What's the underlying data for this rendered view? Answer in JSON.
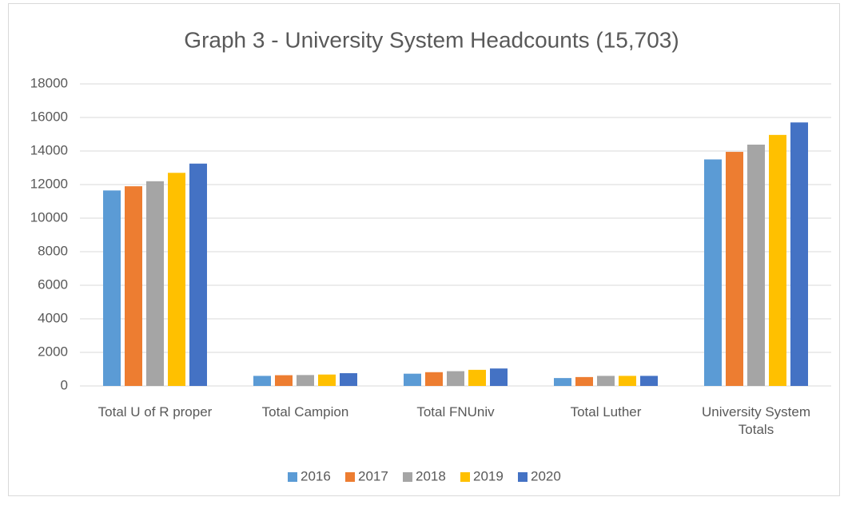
{
  "chart_data": {
    "type": "bar",
    "title": "Graph 3  - University System Headcounts (15,703)",
    "categories": [
      "Total U of R proper",
      "Total Campion",
      "Total FNUniv",
      "Total Luther",
      "University System Totals"
    ],
    "series": [
      {
        "name": "2016",
        "color": "#5b9bd5",
        "values": [
          11650,
          600,
          730,
          470,
          13500
        ]
      },
      {
        "name": "2017",
        "color": "#ed7d31",
        "values": [
          11900,
          640,
          820,
          530,
          13950
        ]
      },
      {
        "name": "2018",
        "color": "#a5a5a5",
        "values": [
          12200,
          650,
          880,
          600,
          14380
        ]
      },
      {
        "name": "2019",
        "color": "#ffc000",
        "values": [
          12700,
          680,
          960,
          600,
          14960
        ]
      },
      {
        "name": "2020",
        "color": "#4472c4",
        "values": [
          13250,
          760,
          1040,
          600,
          15703
        ]
      }
    ],
    "ylim": [
      0,
      18000
    ],
    "yticks": [
      0,
      2000,
      4000,
      6000,
      8000,
      10000,
      12000,
      14000,
      16000,
      18000
    ],
    "grid": true,
    "legend": "bottom"
  }
}
